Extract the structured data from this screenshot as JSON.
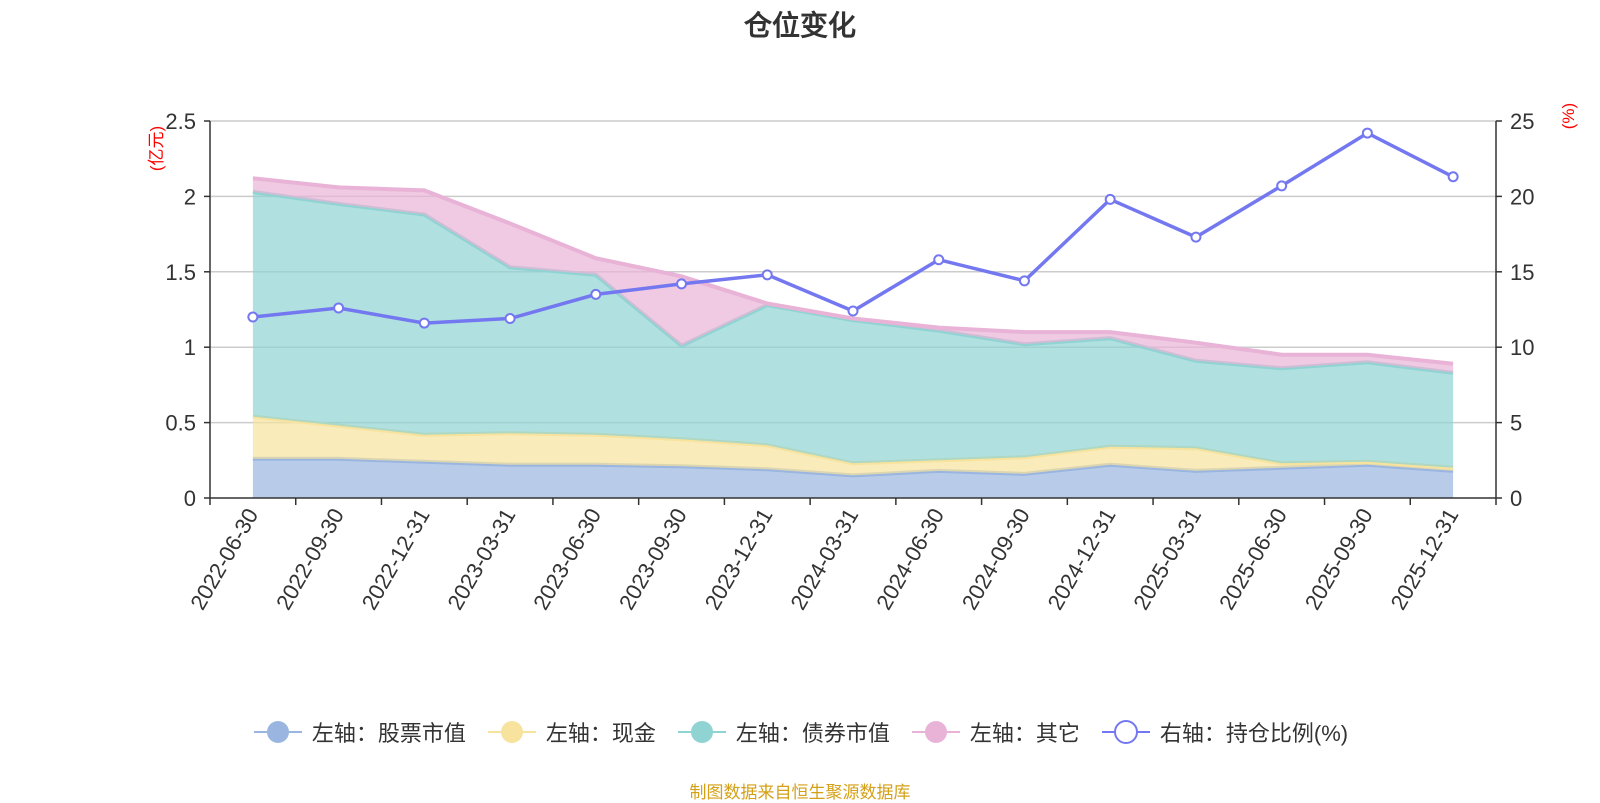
{
  "title": "仓位变化",
  "left_unit": "(亿元)",
  "right_unit": "(%)",
  "source": "制图数据来自恒生聚源数据库",
  "colors": {
    "stock": "#9ab6e0",
    "cash": "#f7e39d",
    "bond": "#8fd3d3",
    "other": "#e8b3d6",
    "ratio": "#7478f0",
    "grid": "#cccccc",
    "axis": "#333333"
  },
  "chart_data": {
    "type": "area",
    "categories": [
      "2022-06-30",
      "2022-09-30",
      "2022-12-31",
      "2023-03-31",
      "2023-06-30",
      "2023-09-30",
      "2023-12-31",
      "2024-03-31",
      "2024-06-30",
      "2024-09-30",
      "2024-12-31",
      "2025-03-31",
      "2025-06-30",
      "2025-09-30",
      "2025-12-31"
    ],
    "left_axis": {
      "label": "(亿元)",
      "ylim": [
        0,
        2.5
      ],
      "ticks": [
        "0",
        "0.5",
        "1",
        "1.5",
        "2",
        "2.5"
      ]
    },
    "right_axis": {
      "label": "(%)",
      "ylim": [
        0,
        25
      ],
      "ticks": [
        "0",
        "5",
        "10",
        "15",
        "20",
        "25"
      ]
    },
    "stacked_series": [
      {
        "name": "左轴：股票市值",
        "key": "stock",
        "values": [
          0.26,
          0.26,
          0.24,
          0.22,
          0.22,
          0.21,
          0.19,
          0.15,
          0.18,
          0.16,
          0.22,
          0.18,
          0.2,
          0.22,
          0.18
        ]
      },
      {
        "name": "左轴：现金",
        "key": "cash",
        "values": [
          0.28,
          0.22,
          0.18,
          0.21,
          0.2,
          0.18,
          0.16,
          0.08,
          0.07,
          0.11,
          0.12,
          0.15,
          0.03,
          0.02,
          0.02
        ]
      },
      {
        "name": "左轴：债券市值",
        "key": "bond",
        "values": [
          1.49,
          1.47,
          1.46,
          1.1,
          1.06,
          0.62,
          0.93,
          0.95,
          0.86,
          0.75,
          0.72,
          0.58,
          0.63,
          0.66,
          0.63
        ]
      },
      {
        "name": "左轴：其它",
        "key": "other",
        "values": [
          0.09,
          0.11,
          0.16,
          0.29,
          0.11,
          0.46,
          0.01,
          0.01,
          0.02,
          0.08,
          0.04,
          0.12,
          0.09,
          0.05,
          0.06
        ]
      }
    ],
    "line_series": {
      "name": "右轴：持仓比例(%)",
      "key": "ratio",
      "values": [
        12.0,
        12.6,
        11.6,
        11.9,
        13.5,
        14.2,
        14.8,
        12.4,
        15.8,
        14.4,
        19.8,
        17.3,
        20.7,
        24.2,
        21.3
      ]
    }
  }
}
